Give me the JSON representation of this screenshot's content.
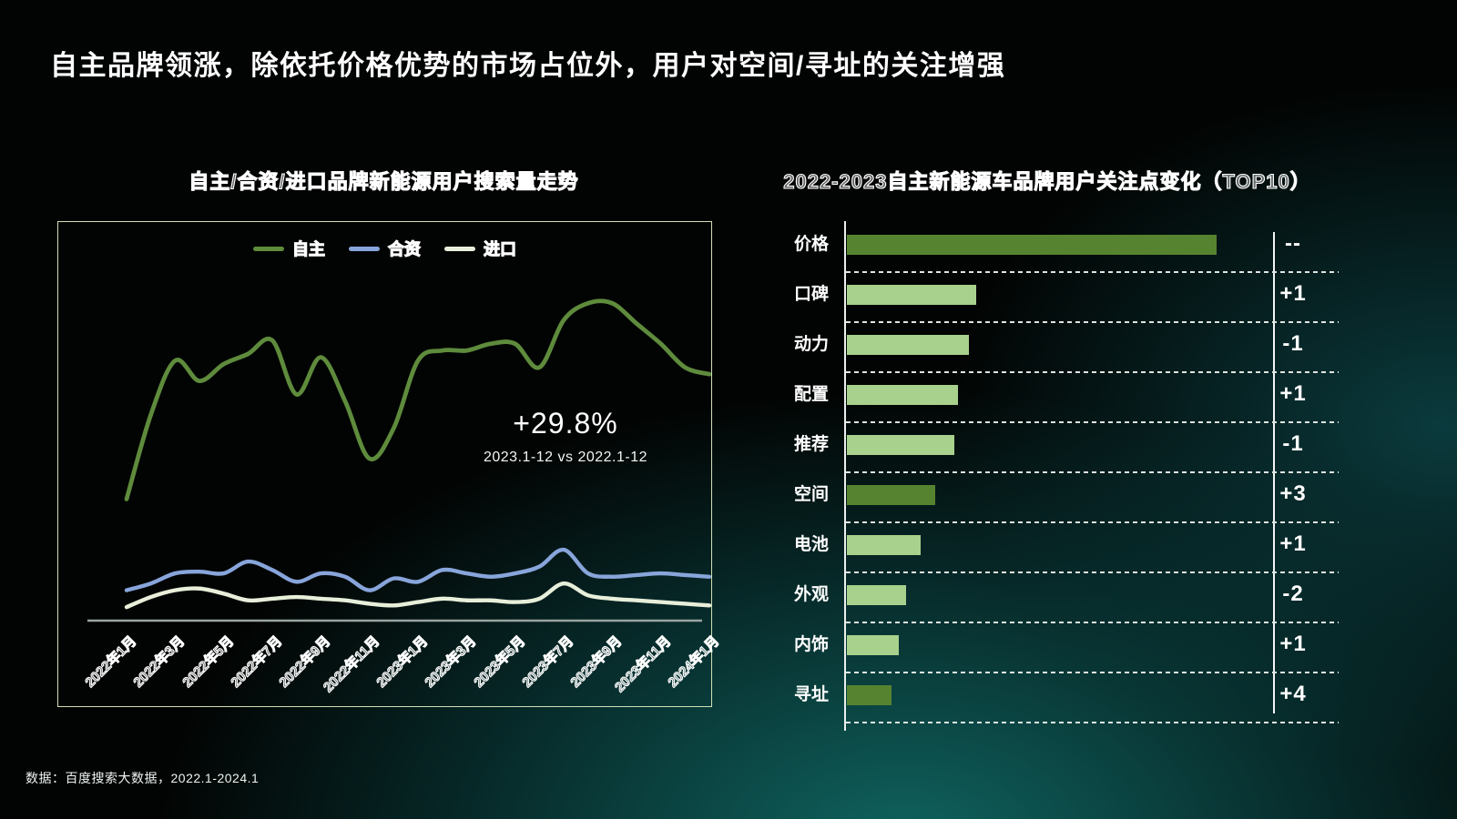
{
  "slide": {
    "title": "自主品牌领涨，除依托价格优势的市场占位外，用户对空间/寻址的关注增强",
    "source_note": "数据：百度搜索大数据，2022.1-2024.1"
  },
  "chart_data": [
    {
      "type": "line",
      "title": "自主/合资/进口品牌新能源用户搜索量走势",
      "xlabel": "",
      "ylabel": "",
      "ylim": [
        0,
        100
      ],
      "grid": false,
      "legend_position": "top-center",
      "x_tick_labels": [
        "2022年1月",
        "2022年3月",
        "2022年5月",
        "2022年7月",
        "2022年9月",
        "2022年11月",
        "2023年1月",
        "2023年3月",
        "2023年5月",
        "2023年7月",
        "2023年9月",
        "2023年11月",
        "2024年1月"
      ],
      "series": [
        {
          "name": "自主",
          "color": "#5e8b3c",
          "values": [
            36,
            61,
            77,
            71,
            76,
            79,
            83,
            67,
            78,
            65,
            48,
            57,
            77,
            80,
            80,
            82,
            82,
            75,
            89,
            94,
            94,
            88,
            82,
            75,
            73
          ]
        },
        {
          "name": "合资",
          "color": "#88a5db",
          "values": [
            9,
            11,
            14,
            14.5,
            14,
            17.5,
            15,
            11.5,
            14,
            13,
            9,
            12.5,
            11.5,
            15,
            14,
            13,
            14,
            16,
            21,
            14,
            13,
            13.5,
            14,
            13.5,
            13
          ]
        },
        {
          "name": "进口",
          "color": "#e7efda",
          "values": [
            4,
            7,
            9,
            9.5,
            8,
            6,
            6.5,
            7,
            6.5,
            6,
            5,
            4.5,
            5.5,
            6.5,
            6,
            6,
            5.5,
            6.5,
            11,
            7.5,
            6.5,
            6,
            5.5,
            5,
            4.5
          ]
        }
      ],
      "annotation": {
        "value": "+29.8%",
        "caption": "2023.1-12 vs 2022.1-12"
      },
      "axis_color": "#98a4a0"
    },
    {
      "type": "bar",
      "orientation": "horizontal",
      "title": "2022-2023自主新能源车品牌用户关注点变化（TOP10）",
      "categories": [
        "价格",
        "口碑",
        "动力",
        "配置",
        "推荐",
        "空间",
        "电池",
        "外观",
        "内饰",
        "寻址"
      ],
      "values": [
        100,
        35,
        33,
        30,
        29,
        24,
        20,
        16,
        14,
        12
      ],
      "changes": [
        "--",
        "+1",
        "-1",
        "+1",
        "-1",
        "+3",
        "+1",
        "-2",
        "+1",
        "+4"
      ],
      "emphasis": [
        true,
        false,
        false,
        false,
        false,
        true,
        false,
        false,
        false,
        true
      ],
      "bar_color": "#a7d18c",
      "emphasis_color": "#56832f",
      "xlim": [
        0,
        100
      ]
    }
  ]
}
